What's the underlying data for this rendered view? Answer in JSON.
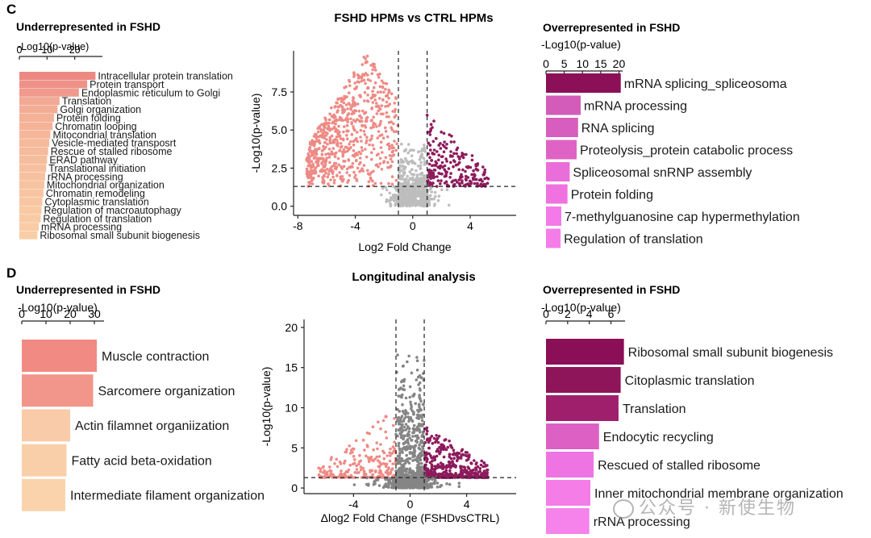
{
  "panels": {
    "c": {
      "letter": "C",
      "volcano_title": "FSHD HPMs vs CTRL HPMs"
    },
    "d": {
      "letter": "D",
      "volcano_title": "Longitudinal analysis"
    }
  },
  "watermark": "公众号 · 新使生物",
  "colors": {
    "down": "#ee8a85",
    "up": "#8d1b5c",
    "neutral_c": "#bdbdbd",
    "neutral_d": "#858585"
  },
  "chart_data": [
    {
      "id": "c_under",
      "type": "bar",
      "orientation": "horizontal",
      "title": "Underrepresented in FSHD",
      "xlabel": "-Log10(p-value)",
      "xlim": [
        0,
        30
      ],
      "xticks": [
        0,
        10,
        20
      ],
      "categories": [
        "Intracellular protein translation",
        "Protein transport",
        "Endoplasmic reticulum to Golgi",
        "Translation",
        "Golgi organization",
        "Protein folding",
        "Chromatin looping",
        "Mitocondrial translation",
        "Vesicle-mediated transposrt",
        "Rescue of stalled ribosome",
        "ERAD pathway",
        "Translational initiation",
        "rRNA processing",
        "Mitochondrial organization",
        "Chromatin remodeling",
        "Cytoplasmic translation",
        "Regulation of macroautophagy",
        "Regulation of translation",
        "mRNA processing",
        "Ribosomal small subunit biogenesis"
      ],
      "values": [
        27.5,
        24.5,
        21.5,
        14.5,
        13.8,
        12.5,
        12,
        11.2,
        10.8,
        10.4,
        10,
        9.7,
        9.3,
        9,
        8.7,
        8.3,
        8,
        7.7,
        7,
        6.5
      ],
      "colors": [
        "#ec8983",
        "#ee9288",
        "#ef9a8d",
        "#f2a993",
        "#f3ad95",
        "#f3b196",
        "#f4b398",
        "#f5b699",
        "#f5b99b",
        "#f5bb9c",
        "#f6bd9d",
        "#f6bf9e",
        "#f7c19f",
        "#f7c3a0",
        "#f7c5a1",
        "#f8c7a2",
        "#f8c9a3",
        "#f8caa4",
        "#f9cca5",
        "#f9cea6"
      ]
    },
    {
      "id": "c_volcano",
      "type": "scatter",
      "title": "FSHD HPMs vs CTRL HPMs",
      "xlabel": "Log2 Fold Change",
      "ylabel": "-Log10(p-value)",
      "xlim": [
        -8.3,
        7.2
      ],
      "ylim": [
        -0.6,
        10.2
      ],
      "xticks": [
        -8,
        -4,
        0,
        4
      ],
      "yticks": [
        0.0,
        2.5,
        5.0,
        7.5
      ],
      "fc_threshold": [
        -1,
        1
      ],
      "p_threshold": 1.3,
      "series": [
        {
          "name": "down",
          "note": "significant down-regulated, approx. distribution",
          "x_range": [
            -7.4,
            -1
          ],
          "y_peak": 8.8,
          "count": 700
        },
        {
          "name": "up",
          "note": "significant up-regulated, approx. distribution",
          "x_range": [
            1,
            5.3
          ],
          "y_peak": 4.7,
          "count": 220
        },
        {
          "name": "neutral",
          "note": "not significant, approx. distribution",
          "x_range": [
            -7.4,
            5.3
          ],
          "y_peak": 4.5,
          "count": 650
        }
      ]
    },
    {
      "id": "c_over",
      "type": "bar",
      "orientation": "horizontal",
      "title": "Overrepresented in FSHD",
      "xlabel": "-Log10(p-value)",
      "xlim": [
        0,
        21
      ],
      "xticks": [
        0,
        5,
        10,
        15,
        20
      ],
      "categories": [
        "mRNA splicing_spliceosoma",
        "mRNA processing",
        "RNA splicing",
        "Proteolysis_protein catabolic process",
        "Spliceosomal snRNP assembly",
        "Protein folding",
        "7-methylguanosine cap hypermethylation",
        "Regulation of translation"
      ],
      "values": [
        20.5,
        9.5,
        8.8,
        8.4,
        6.5,
        5.9,
        4.2,
        4.0
      ],
      "colors": [
        "#8b1058",
        "#d35bb9",
        "#d75dbe",
        "#de63c5",
        "#ea6ed9",
        "#ef72e0",
        "#f47ae9",
        "#f57de9"
      ]
    },
    {
      "id": "d_under",
      "type": "bar",
      "orientation": "horizontal",
      "title": "Underrepresented in FSHD",
      "xlabel": "-Log10(p-value)",
      "xlim": [
        0,
        34
      ],
      "xticks": [
        0,
        10,
        20,
        30
      ],
      "categories": [
        "Muscle contraction",
        "Sarcomere organization",
        "Actin filamnet organiization",
        "Fatty acid beta-oxidation",
        "Intermediate filament organization"
      ],
      "values": [
        31,
        29.5,
        20,
        18.5,
        18
      ],
      "colors": [
        "#f08a82",
        "#f2958a",
        "#f9cba8",
        "#f9cfa9",
        "#fad3ad"
      ]
    },
    {
      "id": "d_volcano",
      "type": "scatter",
      "title": "Longitudinal analysis",
      "xlabel": "Δlog2 Fold Change (FSHDvsCTRL)",
      "ylabel": "-Log10(p-value)",
      "xlim": [
        -7.5,
        7.5
      ],
      "ylim": [
        -0.7,
        21
      ],
      "xticks": [
        -4,
        0,
        4
      ],
      "yticks": [
        0,
        5,
        10,
        15,
        20
      ],
      "fc_threshold": [
        -1,
        1
      ],
      "p_threshold": 1.3,
      "series": [
        {
          "name": "down",
          "note": "significant down-regulated, approx. distribution",
          "x_range": [
            -6.5,
            -1
          ],
          "y_peak": 8,
          "count": 220
        },
        {
          "name": "up",
          "note": "significant up-regulated, approx. distribution",
          "x_range": [
            1,
            5.5
          ],
          "y_peak": 6.5,
          "count": 420
        },
        {
          "name": "neutral",
          "note": "not significant, approx. distribution",
          "x_range": [
            -6.5,
            5.5
          ],
          "y_peak": 19.8,
          "count": 900
        }
      ]
    },
    {
      "id": "d_over",
      "type": "bar",
      "orientation": "horizontal",
      "title": "Overrepresented in FSHD",
      "xlabel": "-Log10(p-value)",
      "xlim": [
        0,
        7.3
      ],
      "xticks": [
        0,
        2,
        4,
        6
      ],
      "categories": [
        "Ribosomal small subunit biogenesis",
        "Citoplasmic translation",
        "Translation",
        "Endocytic recycling",
        "Rescued of stalled ribosome",
        "Inner mitochondrial membrane organization",
        "rRNA processing"
      ],
      "values": [
        7.2,
        6.9,
        6.7,
        4.9,
        4.4,
        4.1,
        4.0
      ],
      "colors": [
        "#8a0f56",
        "#8e1559",
        "#9f1f6c",
        "#dd60c5",
        "#ef74e3",
        "#f47de8",
        "#f583eb"
      ]
    }
  ]
}
